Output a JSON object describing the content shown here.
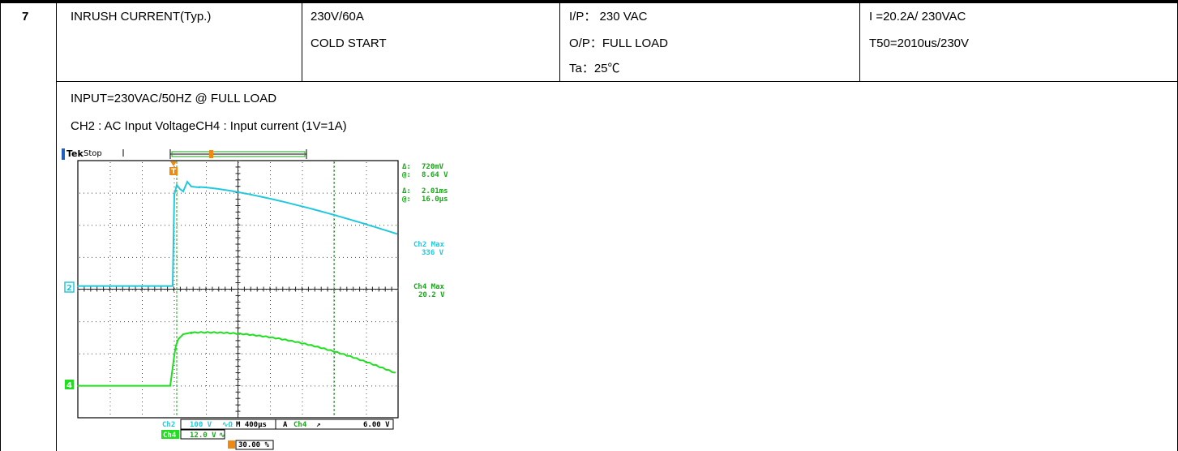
{
  "row": {
    "number": "7",
    "item": "INRUSH CURRENT(Typ.)",
    "condition": [
      "230V/60A",
      "COLD START"
    ],
    "setup": [
      "I/P：  230 VAC",
      "O/P：FULL LOAD",
      "Ta：25℃"
    ],
    "result": [
      "I =20.2A/ 230VAC",
      "T50=2010us/230V"
    ]
  },
  "notes": {
    "line1": "INPUT=230VAC/50HZ @ FULL LOAD",
    "line2": "CH2 : AC Input VoltageCH4 : Input current (1V=1A)"
  },
  "scope": {
    "brand": "Tek",
    "state": "Stop",
    "trigger_marker": "T",
    "cursor_amp_delta_label": "Δ:",
    "cursor_amp_delta": "720mV",
    "cursor_amp_at_label": "@:",
    "cursor_amp_at": "8.64 V",
    "cursor_time_delta_label": "Δ:",
    "cursor_time_delta": "2.01ms",
    "cursor_time_at_label": "@:",
    "cursor_time_at": "16.0µs",
    "ch2_max_label": "Ch2 Max",
    "ch2_max_value": "336 V",
    "ch4_max_label": "Ch4 Max",
    "ch4_max_value": "20.2 V",
    "ch2_marker": "2",
    "ch4_marker": "4",
    "ch2_label": "Ch2",
    "ch2_scale": "100 V",
    "ch2_sym": "∿Ω",
    "timebase": "M 400µs",
    "trig_ch_letter": "A",
    "trig_ch": "Ch4",
    "trig_edge": "↗",
    "trig_level": "6.00 V",
    "ch4_label": "Ch4",
    "ch4_scale": "12.0 V",
    "ch4_sym": "∿",
    "trig_pos": "30.00 %",
    "colors": {
      "ch2": "#22c8dc",
      "ch4": "#1ee01e",
      "trigger": "#f08a0e",
      "cursor": "#1aa51a"
    }
  }
}
